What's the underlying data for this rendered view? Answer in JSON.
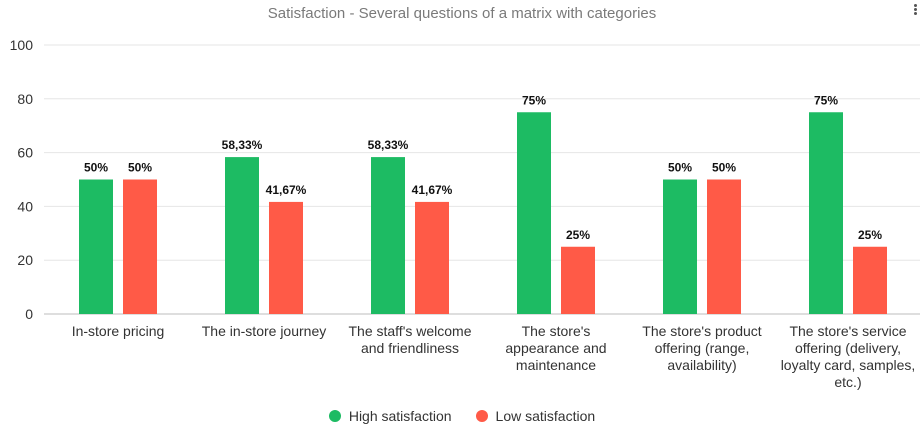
{
  "chart_data": {
    "type": "bar",
    "title": "Satisfaction - Several questions of a matrix with categories",
    "categories": [
      [
        "In-store pricing"
      ],
      [
        "The in-store journey"
      ],
      [
        "The staff's welcome",
        "and friendliness"
      ],
      [
        "The store's",
        "appearance and",
        "maintenance"
      ],
      [
        "The store's product",
        "offering (range,",
        "availability)"
      ],
      [
        "The store's service",
        "offering (delivery,",
        "loyalty card, samples,",
        "etc.)"
      ]
    ],
    "series": [
      {
        "name": "High satisfaction",
        "color": "#1dbb63",
        "values": [
          50,
          58.33,
          58.33,
          75,
          50,
          75
        ],
        "labels": [
          "50%",
          "58,33%",
          "58,33%",
          "75%",
          "50%",
          "75%"
        ]
      },
      {
        "name": "Low satisfaction",
        "color": "#ff5a47",
        "values": [
          50,
          41.67,
          41.67,
          25,
          50,
          25
        ],
        "labels": [
          "50%",
          "41,67%",
          "41,67%",
          "25%",
          "50%",
          "25%"
        ]
      }
    ],
    "ylim": [
      0,
      100
    ],
    "yticks": [
      "0",
      "20",
      "40",
      "60",
      "80",
      "100"
    ],
    "grid": true,
    "legend_position": "bottom-center"
  },
  "menu_icon": "more-vertical-icon"
}
